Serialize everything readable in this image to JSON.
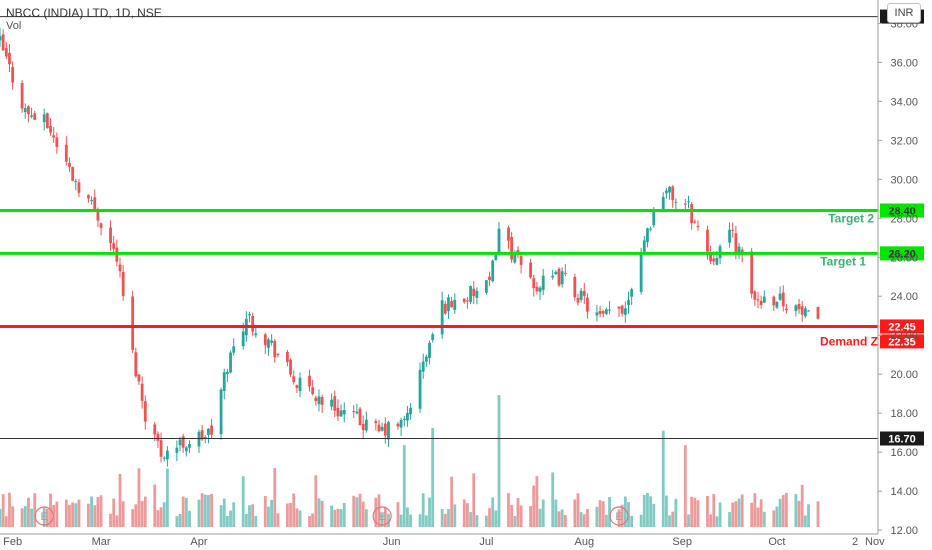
{
  "header": {
    "symbol_title": "NBCC (INDIA) LTD, 1D, NSE",
    "volume_label": "Vol",
    "currency": "INR"
  },
  "colors": {
    "up": "#26a69a",
    "down": "#ef5350",
    "vol_up": "#80cbc4",
    "vol_down": "#ef9a9a",
    "target_line": "#00e600",
    "demand_line": "#ff1a1a",
    "ref_line": "#333333",
    "axis_text": "#555555"
  },
  "chart_data": {
    "type": "candlestick",
    "x_ticks": [
      "Feb",
      "Mar",
      "Apr",
      "Jun",
      "Jul",
      "Aug",
      "Sep",
      "Oct",
      "Nov",
      "2"
    ],
    "y_ticks": [
      "12.00",
      "14.00",
      "16.00",
      "18.00",
      "20.00",
      "22.00",
      "24.00",
      "26.00",
      "28.00",
      "30.00",
      "32.00",
      "34.00",
      "36.00",
      "38.00"
    ],
    "ylim": [
      11.8,
      39.2
    ],
    "horizontal_levels": [
      {
        "label": "Target 2",
        "value": 28.4,
        "tag": "28.40",
        "kind": "target"
      },
      {
        "label": "Target 1",
        "value": 26.2,
        "tag": "26.20",
        "kind": "target"
      },
      {
        "label": "Demand Z",
        "value": 22.45,
        "tag": "22.45",
        "kind": "demand"
      },
      {
        "label": "",
        "value": 38.35,
        "tag": "38.35",
        "kind": "ref"
      },
      {
        "label": "",
        "value": 16.7,
        "tag": "16.70",
        "kind": "ref"
      }
    ],
    "last_price_tag": "22.35",
    "last_price": 22.35,
    "close_path": [
      [
        "2019-01-28",
        37.0
      ],
      [
        "2019-02-05",
        33.5
      ],
      [
        "2019-02-12",
        32.8
      ],
      [
        "2019-02-20",
        30.2
      ],
      [
        "2019-02-28",
        28.2
      ],
      [
        "2019-03-06",
        26.0
      ],
      [
        "2019-03-11",
        21.0
      ],
      [
        "2019-03-15",
        18.0
      ],
      [
        "2019-03-20",
        16.0
      ],
      [
        "2019-03-28",
        16.5
      ],
      [
        "2019-04-05",
        17.0
      ],
      [
        "2019-04-10",
        20.5
      ],
      [
        "2019-04-16",
        23.0
      ],
      [
        "2019-04-24",
        21.5
      ],
      [
        "2019-05-02",
        19.5
      ],
      [
        "2019-05-15",
        18.2
      ],
      [
        "2019-05-28",
        17.0
      ],
      [
        "2019-06-05",
        17.5
      ],
      [
        "2019-06-10",
        20.0
      ],
      [
        "2019-06-17",
        23.5
      ],
      [
        "2019-06-25",
        24.0
      ],
      [
        "2019-07-02",
        24.5
      ],
      [
        "2019-07-05",
        27.5
      ],
      [
        "2019-07-10",
        26.0
      ],
      [
        "2019-07-17",
        24.5
      ],
      [
        "2019-07-25",
        25.0
      ],
      [
        "2019-08-06",
        22.8
      ],
      [
        "2019-08-14",
        23.5
      ],
      [
        "2019-08-20",
        27.0
      ],
      [
        "2019-08-26",
        29.5
      ],
      [
        "2019-09-03",
        28.5
      ],
      [
        "2019-09-10",
        26.0
      ],
      [
        "2019-09-17",
        27.2
      ],
      [
        "2019-09-24",
        23.8
      ],
      [
        "2019-10-01",
        24.0
      ],
      [
        "2019-10-07",
        23.4
      ],
      [
        "2019-10-14",
        22.4
      ]
    ],
    "volume_spikes": [
      {
        "date": "2019-06-05",
        "bar": "up",
        "relative": 0.62
      },
      {
        "date": "2019-06-14",
        "bar": "up",
        "relative": 0.75
      },
      {
        "date": "2019-07-05",
        "bar": "up",
        "relative": 1.0
      },
      {
        "date": "2019-08-26",
        "bar": "up",
        "relative": 0.73
      },
      {
        "date": "2019-09-02",
        "bar": "up",
        "relative": 0.62
      }
    ],
    "earnings_markers": [
      {
        "date": "2019-02-11",
        "symbol": "E"
      },
      {
        "date": "2019-05-29",
        "symbol": "E"
      },
      {
        "date": "2019-08-12",
        "symbol": "E"
      }
    ]
  }
}
